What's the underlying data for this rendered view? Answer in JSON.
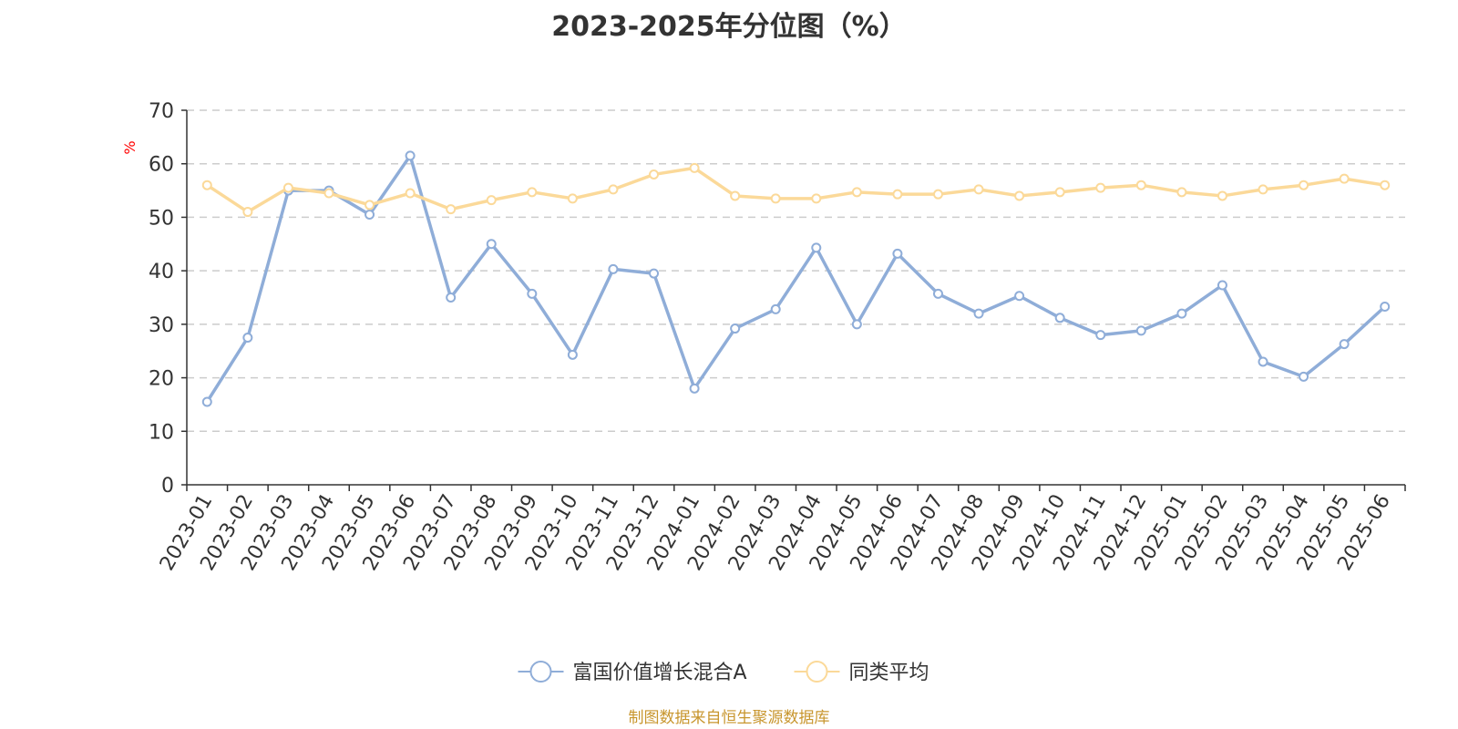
{
  "source": "制图数据来自恒生聚源数据库",
  "chart_data": {
    "type": "line",
    "title": "2023-2025年分位图（%）",
    "ylabel": "%",
    "ylim": [
      0,
      70
    ],
    "yticks": [
      0,
      10,
      20,
      30,
      40,
      50,
      60,
      70
    ],
    "grid": true,
    "legend_position": "bottom",
    "categories": [
      "2023-01",
      "2023-02",
      "2023-03",
      "2023-04",
      "2023-05",
      "2023-06",
      "2023-07",
      "2023-08",
      "2023-09",
      "2023-10",
      "2023-11",
      "2023-12",
      "2024-01",
      "2024-02",
      "2024-03",
      "2024-04",
      "2024-05",
      "2024-06",
      "2024-07",
      "2024-08",
      "2024-09",
      "2024-10",
      "2024-11",
      "2024-12",
      "2025-01",
      "2025-02",
      "2025-03",
      "2025-04",
      "2025-05",
      "2025-06"
    ],
    "series": [
      {
        "name": "富国价值增长混合A",
        "color": "#8fadd8",
        "values": [
          15.5,
          27.5,
          55.0,
          55.0,
          50.5,
          61.5,
          35.0,
          45.0,
          35.7,
          24.3,
          40.3,
          39.5,
          18.0,
          29.2,
          32.8,
          44.3,
          30.0,
          43.2,
          35.7,
          32.0,
          35.3,
          31.2,
          28.0,
          28.8,
          32.0,
          37.3,
          23.0,
          20.2,
          26.3,
          33.3
        ]
      },
      {
        "name": "同类平均",
        "color": "#fbd999",
        "values": [
          56.0,
          51.0,
          55.5,
          54.5,
          52.3,
          54.5,
          51.5,
          53.2,
          54.7,
          53.5,
          55.2,
          58.0,
          59.2,
          54.0,
          53.5,
          53.5,
          54.7,
          54.3,
          54.3,
          55.2,
          54.0,
          54.7,
          55.5,
          56.0,
          54.7,
          54.0,
          55.2,
          56.0,
          57.2,
          56.0
        ]
      }
    ]
  }
}
